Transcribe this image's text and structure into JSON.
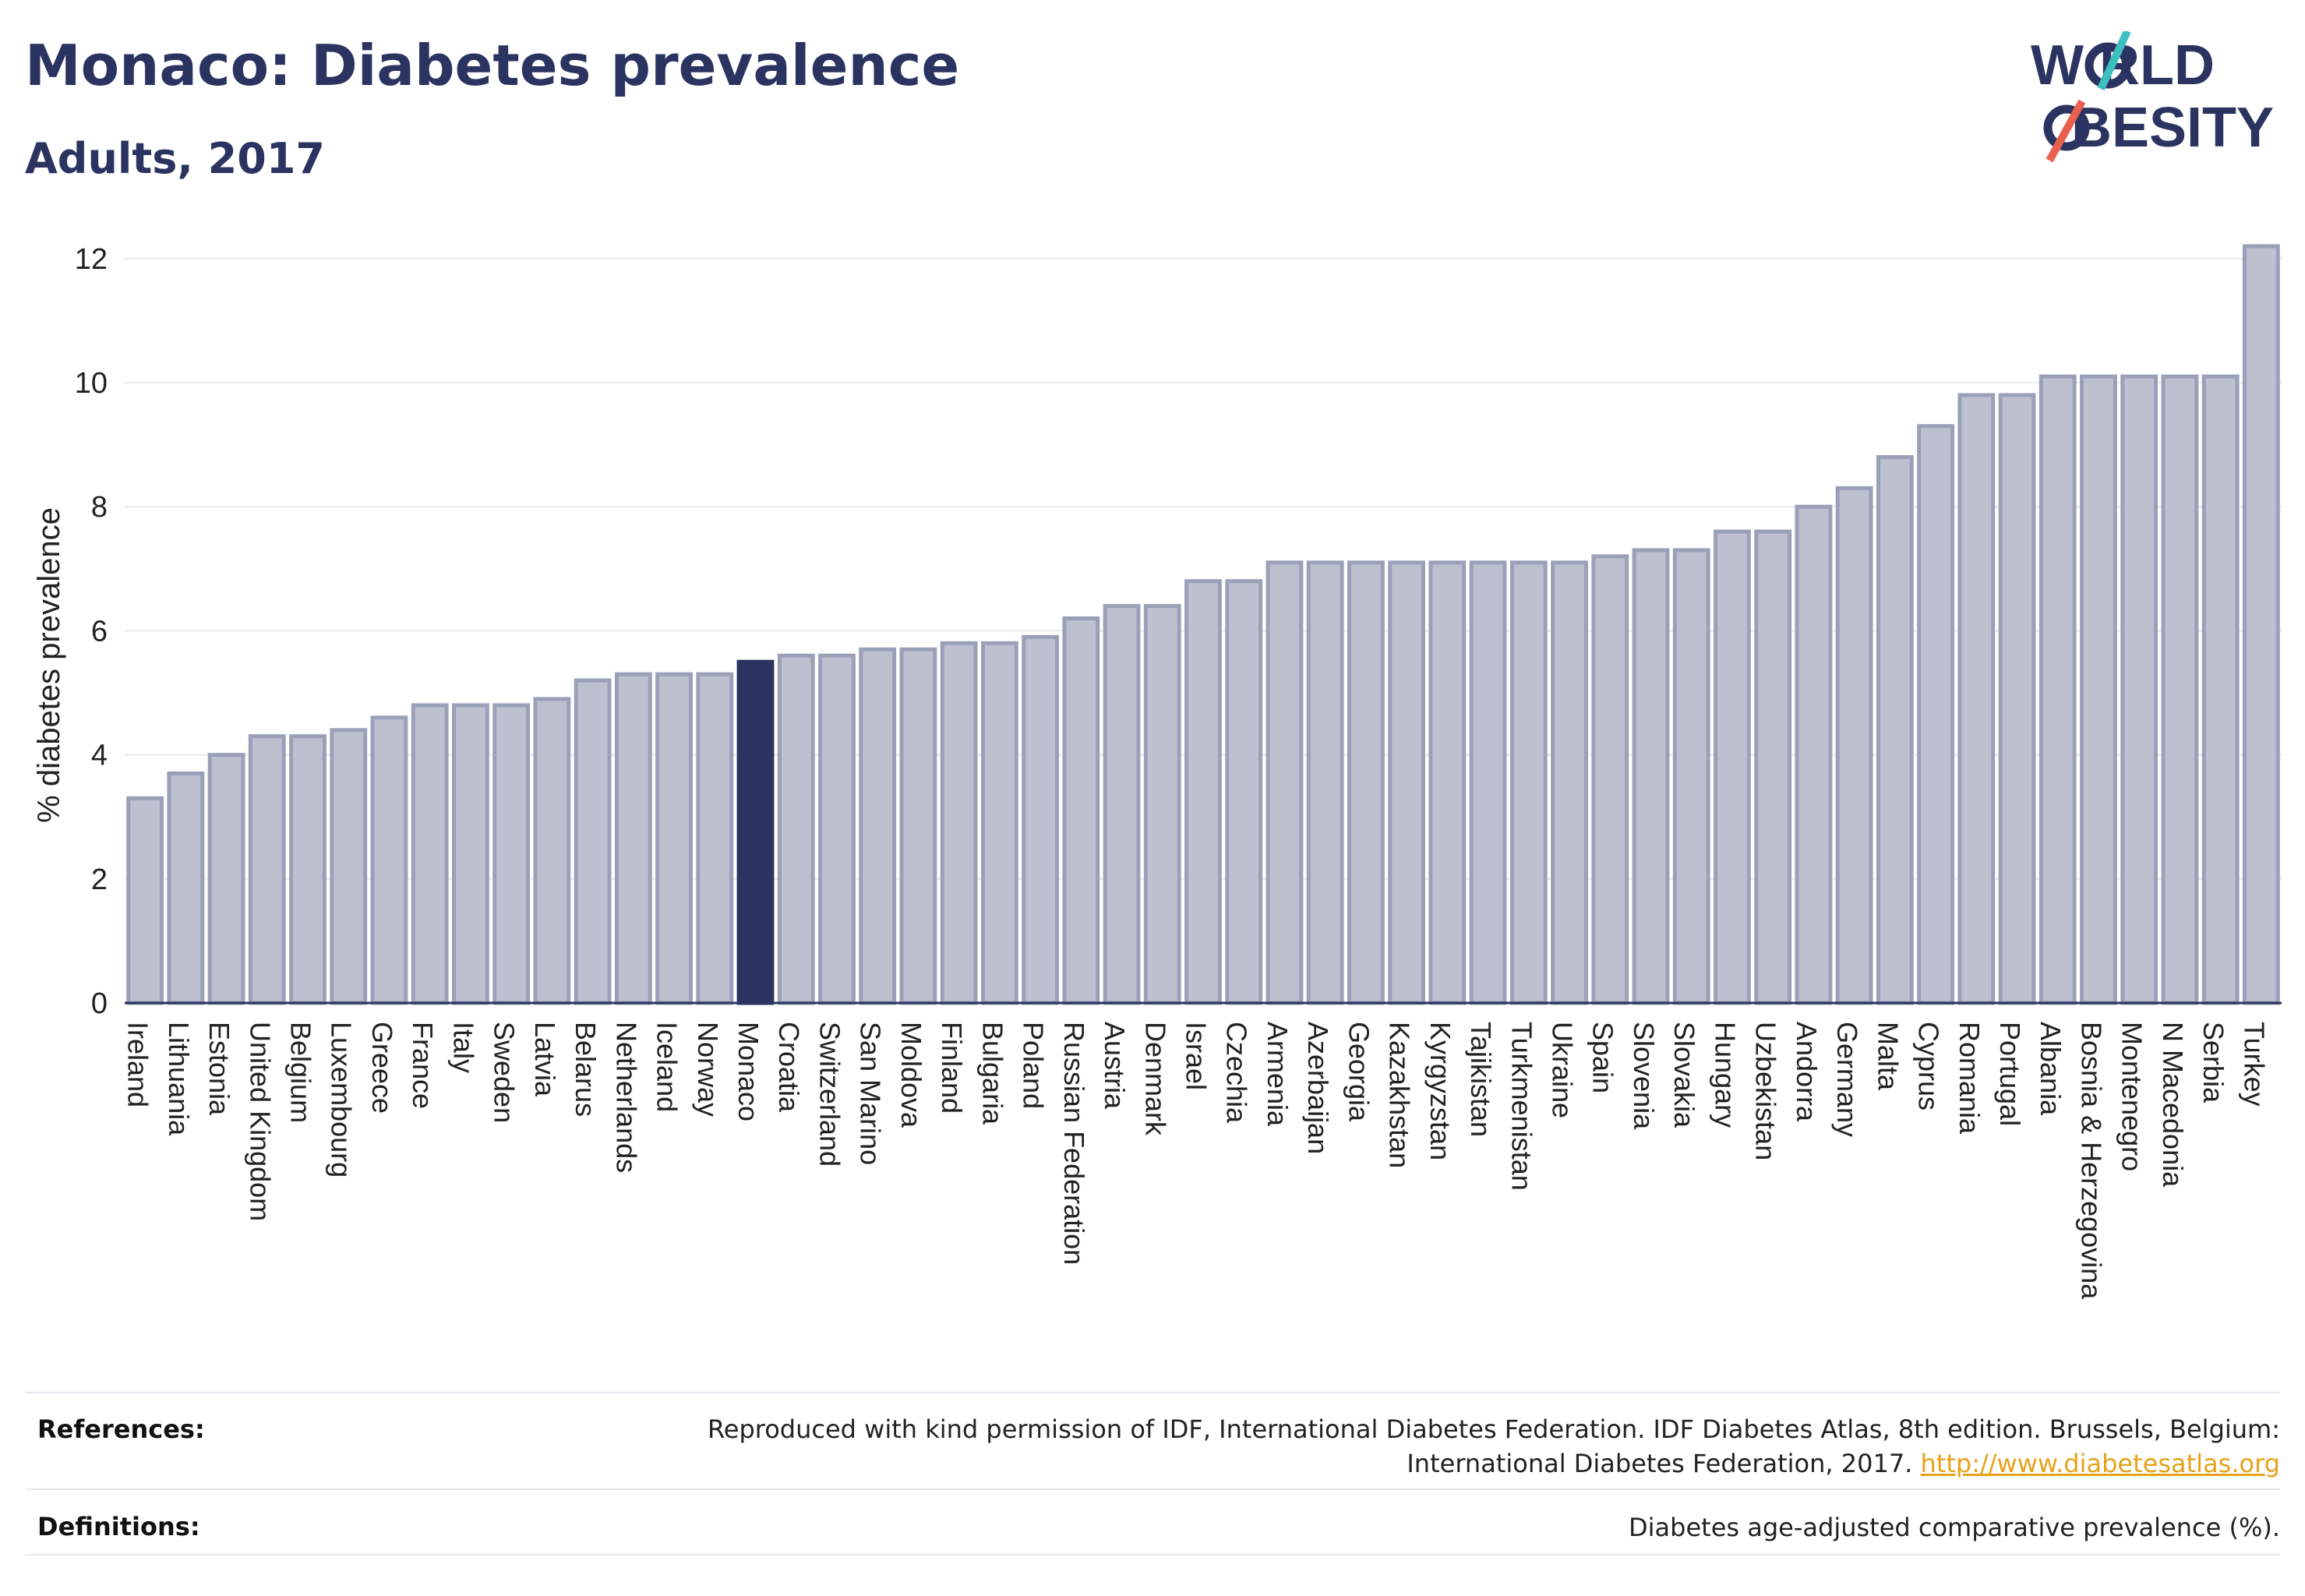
{
  "header": {
    "title": "Monaco: Diabetes prevalence",
    "subtitle": "Adults, 2017"
  },
  "logo": {
    "line1": "W RLD",
    "line2": "BESITY",
    "colors": {
      "text": "#2b3360",
      "slash_top": "#3ec0c0",
      "slash_bottom": "#e8614f"
    }
  },
  "colors": {
    "bar": "#bcc0cf",
    "bar_border": "#9aa0b8",
    "highlight": "#2b3360",
    "grid": "#e8e9ee",
    "axis_text": "#222222"
  },
  "chart_data": {
    "type": "bar",
    "ylabel": "% diabetes prevalence",
    "ylim": [
      0,
      12.4
    ],
    "yticks": [
      0,
      2,
      4,
      6,
      8,
      10,
      12
    ],
    "grid": true,
    "highlight": "Monaco",
    "categories": [
      "Ireland",
      "Lithuania",
      "Estonia",
      "United Kingdom",
      "Belgium",
      "Luxembourg",
      "Greece",
      "France",
      "Italy",
      "Sweden",
      "Latvia",
      "Belarus",
      "Netherlands",
      "Iceland",
      "Norway",
      "Monaco",
      "Croatia",
      "Switzerland",
      "San Marino",
      "Moldova",
      "Finland",
      "Bulgaria",
      "Poland",
      "Russian Federation",
      "Austria",
      "Denmark",
      "Israel",
      "Czechia",
      "Armenia",
      "Azerbaijan",
      "Georgia",
      "Kazakhstan",
      "Kyrgyzstan",
      "Tajikistan",
      "Turkmenistan",
      "Ukraine",
      "Spain",
      "Slovenia",
      "Slovakia",
      "Hungary",
      "Uzbekistan",
      "Andorra",
      "Germany",
      "Malta",
      "Cyprus",
      "Romania",
      "Portugal",
      "Albania",
      "Bosnia & Herzegovina",
      "Montenegro",
      "N Macedonia",
      "Serbia",
      "Turkey"
    ],
    "values": [
      3.3,
      3.7,
      4.0,
      4.3,
      4.3,
      4.4,
      4.6,
      4.8,
      4.8,
      4.8,
      4.9,
      5.2,
      5.3,
      5.3,
      5.3,
      5.5,
      5.6,
      5.6,
      5.7,
      5.7,
      5.8,
      5.8,
      5.9,
      6.2,
      6.4,
      6.4,
      6.8,
      6.8,
      7.1,
      7.1,
      7.1,
      7.1,
      7.1,
      7.1,
      7.1,
      7.1,
      7.2,
      7.3,
      7.3,
      7.6,
      7.6,
      8.0,
      8.3,
      8.8,
      9.3,
      9.8,
      9.8,
      10.1,
      10.1,
      10.1,
      10.1,
      10.1,
      12.2
    ]
  },
  "footer": {
    "references_label": "References:",
    "references_line1": "Reproduced with kind permission of IDF, International Diabetes Federation. IDF Diabetes Atlas, 8th edition. Brussels, Belgium:",
    "references_line2": "International Diabetes Federation, 2017.",
    "references_link": "http://www.diabetesatlas.org",
    "definitions_label": "Definitions:",
    "definitions_text": "Diabetes age-adjusted comparative prevalence (%)."
  }
}
